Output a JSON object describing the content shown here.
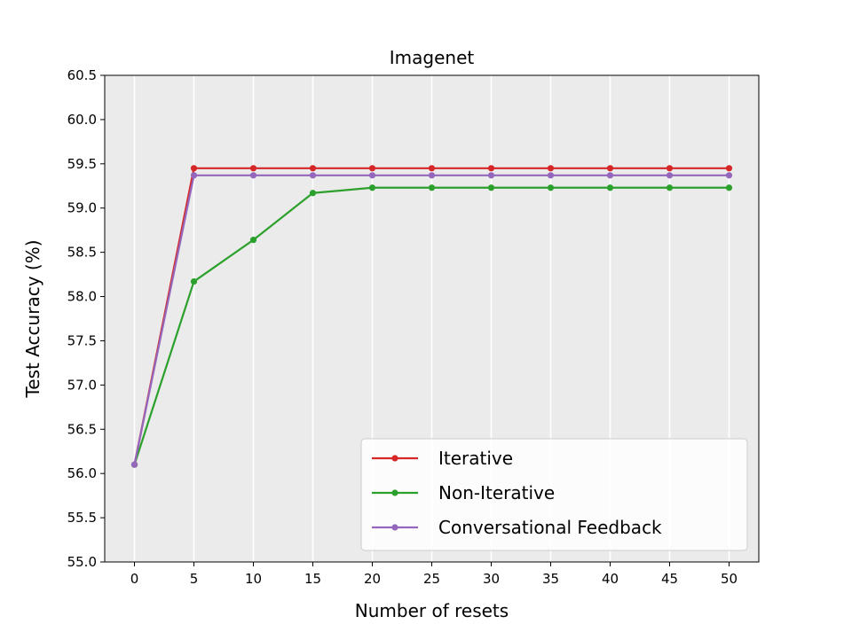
{
  "chart_data": {
    "type": "line",
    "title": "Imagenet",
    "xlabel": "Number of resets",
    "ylabel": "Test Accuracy (%)",
    "xlim": [
      -2.5,
      52.5
    ],
    "ylim": [
      55.0,
      60.5
    ],
    "x": [
      0,
      5,
      10,
      15,
      20,
      25,
      30,
      35,
      40,
      45,
      50
    ],
    "x_ticks": [
      "0",
      "5",
      "10",
      "15",
      "20",
      "25",
      "30",
      "35",
      "40",
      "45",
      "50"
    ],
    "y_ticks": [
      "55.0",
      "55.5",
      "56.0",
      "56.5",
      "57.0",
      "57.5",
      "58.0",
      "58.5",
      "59.0",
      "59.5",
      "60.0",
      "60.5"
    ],
    "grid": true,
    "legend_position": "lower-right",
    "background": "#ebebeb",
    "series": [
      {
        "name": "Iterative",
        "color": "#d62728",
        "values": [
          56.1,
          59.45,
          59.45,
          59.45,
          59.45,
          59.45,
          59.45,
          59.45,
          59.45,
          59.45,
          59.45
        ]
      },
      {
        "name": "Non-Iterative",
        "color": "#2ca02c",
        "values": [
          56.1,
          58.17,
          58.64,
          59.17,
          59.23,
          59.23,
          59.23,
          59.23,
          59.23,
          59.23,
          59.23
        ]
      },
      {
        "name": "Conversational Feedback",
        "color": "#9467bd",
        "values": [
          56.1,
          59.37,
          59.37,
          59.37,
          59.37,
          59.37,
          59.37,
          59.37,
          59.37,
          59.37,
          59.37
        ]
      }
    ]
  }
}
